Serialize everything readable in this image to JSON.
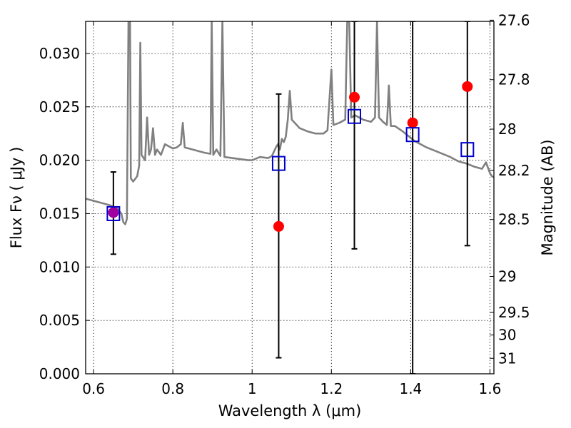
{
  "chart_data": {
    "type": "scatter",
    "xlabel": "Wavelength  λ (μm)",
    "ylabel": "Flux  Fν  ( μJy )",
    "ylabel_right": "Magnitude (AB)",
    "xlim": [
      0.58,
      1.61
    ],
    "ylim": [
      0.0,
      0.033
    ],
    "grid": true,
    "x_ticks": [
      {
        "value": 0.6,
        "label": "0.6"
      },
      {
        "value": 0.8,
        "label": "0.8"
      },
      {
        "value": 1.0,
        "label": "1"
      },
      {
        "value": 1.2,
        "label": "1.2"
      },
      {
        "value": 1.4,
        "label": "1.4"
      },
      {
        "value": 1.6,
        "label": "1.6"
      }
    ],
    "y_ticks": [
      {
        "value": 0.0,
        "label": "0.000"
      },
      {
        "value": 0.005,
        "label": "0.005"
      },
      {
        "value": 0.01,
        "label": "0.010"
      },
      {
        "value": 0.015,
        "label": "0.015"
      },
      {
        "value": 0.02,
        "label": "0.020"
      },
      {
        "value": 0.025,
        "label": "0.025"
      },
      {
        "value": 0.03,
        "label": "0.030"
      }
    ],
    "right_ticks": [
      {
        "flux": 0.03311,
        "label": "27.6"
      },
      {
        "flux": 0.02754,
        "label": "27.8"
      },
      {
        "flux": 0.02291,
        "label": "28"
      },
      {
        "flux": 0.01905,
        "label": "28.2"
      },
      {
        "flux": 0.01445,
        "label": "28.5"
      },
      {
        "flux": 0.00912,
        "label": "29"
      },
      {
        "flux": 0.00575,
        "label": "29.5"
      },
      {
        "flux": 0.00363,
        "label": "30"
      },
      {
        "flux": 0.00145,
        "label": "31"
      }
    ],
    "colors": {
      "template": "#808080",
      "observed": "#ff0000",
      "model": "#0000cc",
      "errorbar": "#000000",
      "overlap": "#a000a0"
    },
    "template_spectrum": [
      [
        0.58,
        0.0164
      ],
      [
        0.6,
        0.0162
      ],
      [
        0.62,
        0.016
      ],
      [
        0.64,
        0.0158
      ],
      [
        0.66,
        0.0155
      ],
      [
        0.67,
        0.015
      ],
      [
        0.675,
        0.0142
      ],
      [
        0.68,
        0.014
      ],
      [
        0.684,
        0.0145
      ],
      [
        0.688,
        0.033
      ],
      [
        0.692,
        0.033
      ],
      [
        0.694,
        0.0183
      ],
      [
        0.7,
        0.018
      ],
      [
        0.71,
        0.0185
      ],
      [
        0.715,
        0.0195
      ],
      [
        0.718,
        0.031
      ],
      [
        0.721,
        0.0205
      ],
      [
        0.73,
        0.02
      ],
      [
        0.735,
        0.024
      ],
      [
        0.74,
        0.0205
      ],
      [
        0.745,
        0.021
      ],
      [
        0.75,
        0.023
      ],
      [
        0.755,
        0.0205
      ],
      [
        0.76,
        0.021
      ],
      [
        0.77,
        0.0205
      ],
      [
        0.78,
        0.0215
      ],
      [
        0.79,
        0.0213
      ],
      [
        0.8,
        0.0211
      ],
      [
        0.81,
        0.0212
      ],
      [
        0.82,
        0.0215
      ],
      [
        0.825,
        0.0235
      ],
      [
        0.83,
        0.0212
      ],
      [
        0.84,
        0.0211
      ],
      [
        0.86,
        0.0209
      ],
      [
        0.88,
        0.0207
      ],
      [
        0.895,
        0.0206
      ],
      [
        0.898,
        0.033
      ],
      [
        0.902,
        0.0205
      ],
      [
        0.91,
        0.021
      ],
      [
        0.92,
        0.0204
      ],
      [
        0.925,
        0.033
      ],
      [
        0.93,
        0.0203
      ],
      [
        0.95,
        0.0202
      ],
      [
        0.97,
        0.0201
      ],
      [
        0.99,
        0.02
      ],
      [
        1.0,
        0.02
      ],
      [
        1.02,
        0.0203
      ],
      [
        1.04,
        0.0202
      ],
      [
        1.05,
        0.0204
      ],
      [
        1.06,
        0.0212
      ],
      [
        1.065,
        0.0215
      ],
      [
        1.07,
        0.021
      ],
      [
        1.075,
        0.022
      ],
      [
        1.08,
        0.0217
      ],
      [
        1.085,
        0.0222
      ],
      [
        1.09,
        0.0238
      ],
      [
        1.095,
        0.0265
      ],
      [
        1.1,
        0.0238
      ],
      [
        1.12,
        0.023
      ],
      [
        1.14,
        0.0227
      ],
      [
        1.16,
        0.0225
      ],
      [
        1.18,
        0.0225
      ],
      [
        1.19,
        0.0228
      ],
      [
        1.2,
        0.0285
      ],
      [
        1.205,
        0.0233
      ],
      [
        1.22,
        0.0235
      ],
      [
        1.235,
        0.0238
      ],
      [
        1.24,
        0.033
      ],
      [
        1.245,
        0.033
      ],
      [
        1.25,
        0.024
      ],
      [
        1.26,
        0.0242
      ],
      [
        1.27,
        0.024
      ],
      [
        1.28,
        0.0238
      ],
      [
        1.3,
        0.0236
      ],
      [
        1.31,
        0.024
      ],
      [
        1.315,
        0.033
      ],
      [
        1.32,
        0.024
      ],
      [
        1.33,
        0.0236
      ],
      [
        1.34,
        0.0233
      ],
      [
        1.345,
        0.027
      ],
      [
        1.35,
        0.0232
      ],
      [
        1.36,
        0.0232
      ],
      [
        1.38,
        0.0227
      ],
      [
        1.4,
        0.0221
      ],
      [
        1.41,
        0.0218
      ],
      [
        1.42,
        0.0216
      ],
      [
        1.44,
        0.0212
      ],
      [
        1.46,
        0.0209
      ],
      [
        1.48,
        0.0206
      ],
      [
        1.5,
        0.0203
      ],
      [
        1.52,
        0.0199
      ],
      [
        1.54,
        0.0197
      ],
      [
        1.56,
        0.0194
      ],
      [
        1.58,
        0.0192
      ],
      [
        1.59,
        0.0198
      ],
      [
        1.6,
        0.0188
      ],
      [
        1.605,
        0.0185
      ],
      [
        1.61,
        0.0184
      ]
    ],
    "observed": [
      {
        "x": 0.65,
        "y": 0.0151
      },
      {
        "x": 1.067,
        "y": 0.0138
      },
      {
        "x": 1.258,
        "y": 0.0259
      },
      {
        "x": 1.405,
        "y": 0.0235
      },
      {
        "x": 1.543,
        "y": 0.0269
      }
    ],
    "model": [
      {
        "x": 0.65,
        "y": 0.015
      },
      {
        "x": 1.067,
        "y": 0.0197
      },
      {
        "x": 1.258,
        "y": 0.0241
      },
      {
        "x": 1.405,
        "y": 0.0224
      },
      {
        "x": 1.543,
        "y": 0.021
      }
    ],
    "errorbars": [
      {
        "x": 0.65,
        "low": 0.0112,
        "high": 0.0189
      },
      {
        "x": 1.067,
        "low": 0.0015,
        "high": 0.0262
      },
      {
        "x": 1.258,
        "low": 0.0117,
        "high": 0.033
      },
      {
        "x": 1.405,
        "low": 0.0,
        "high": 0.033
      },
      {
        "x": 1.543,
        "low": 0.012,
        "high": 0.033
      }
    ]
  }
}
